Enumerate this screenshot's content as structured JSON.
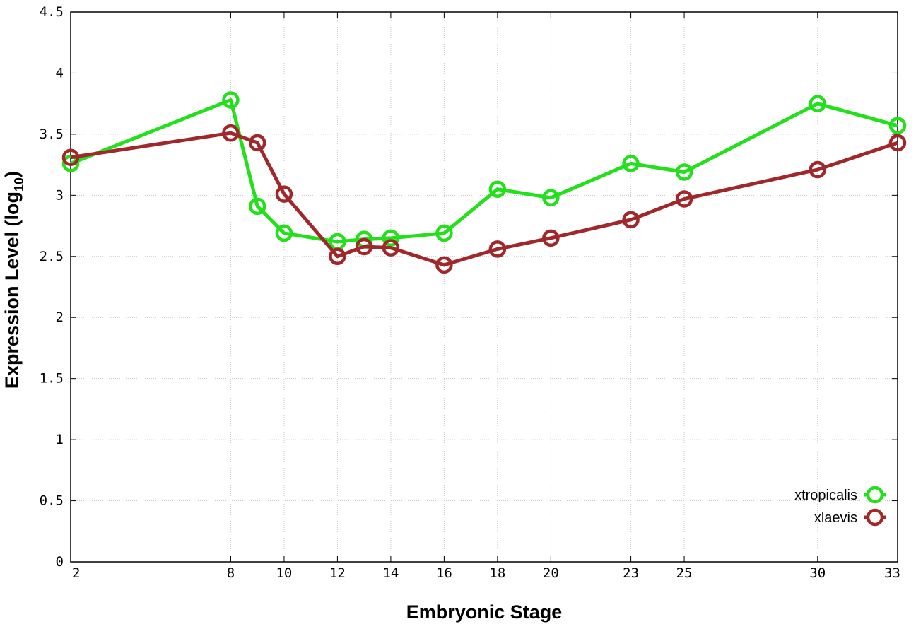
{
  "chart_data": {
    "type": "line",
    "x_axis": {
      "label": "Embryonic Stage",
      "ticks": [
        2,
        8,
        10,
        12,
        14,
        16,
        18,
        20,
        23,
        25,
        30,
        33
      ],
      "range": [
        2,
        33
      ]
    },
    "y_axis": {
      "label_main": "Expression Level (log",
      "label_sub": "10",
      "label_close": ")",
      "ticks": [
        "0",
        "0.5",
        "1",
        "1.5",
        "2",
        "2.5",
        "3",
        "3.5",
        "4",
        "4.5"
      ],
      "range": [
        0,
        4.5
      ]
    },
    "grid": true,
    "legend_position": "bottom-right",
    "series": [
      {
        "name": "xtropicalis",
        "color": "#22e01a",
        "points": [
          {
            "x": 2,
            "y": 3.26
          },
          {
            "x": 8,
            "y": 3.78
          },
          {
            "x": 9,
            "y": 2.91
          },
          {
            "x": 10,
            "y": 2.69
          },
          {
            "x": 12,
            "y": 2.62
          },
          {
            "x": 13,
            "y": 2.64
          },
          {
            "x": 14,
            "y": 2.65
          },
          {
            "x": 16,
            "y": 2.69
          },
          {
            "x": 18,
            "y": 3.05
          },
          {
            "x": 20,
            "y": 2.98
          },
          {
            "x": 23,
            "y": 3.26
          },
          {
            "x": 25,
            "y": 3.19
          },
          {
            "x": 30,
            "y": 3.75
          },
          {
            "x": 33,
            "y": 3.57
          }
        ]
      },
      {
        "name": "xlaevis",
        "color": "#a0282a",
        "points": [
          {
            "x": 2,
            "y": 3.31
          },
          {
            "x": 8,
            "y": 3.51
          },
          {
            "x": 9,
            "y": 3.43
          },
          {
            "x": 10,
            "y": 3.01
          },
          {
            "x": 12,
            "y": 2.5
          },
          {
            "x": 13,
            "y": 2.58
          },
          {
            "x": 14,
            "y": 2.57
          },
          {
            "x": 16,
            "y": 2.43
          },
          {
            "x": 18,
            "y": 2.56
          },
          {
            "x": 20,
            "y": 2.65
          },
          {
            "x": 23,
            "y": 2.8
          },
          {
            "x": 25,
            "y": 2.97
          },
          {
            "x": 30,
            "y": 3.21
          },
          {
            "x": 33,
            "y": 3.43
          }
        ]
      }
    ]
  }
}
